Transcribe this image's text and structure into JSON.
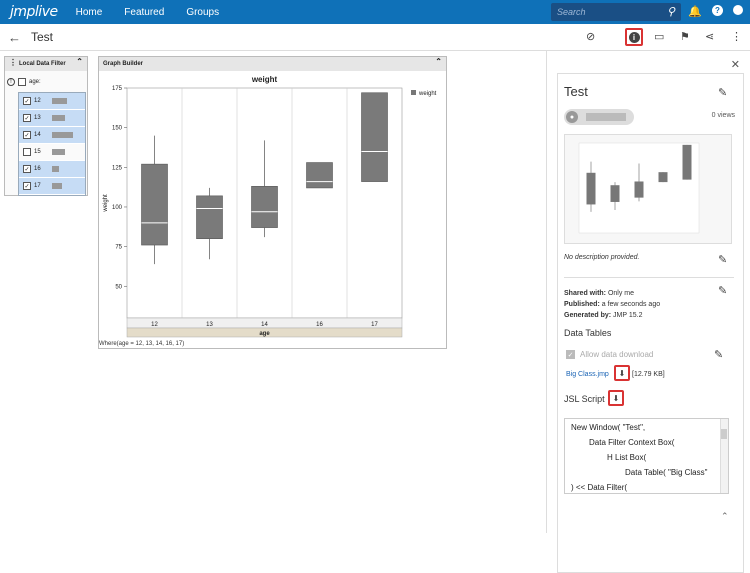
{
  "app": {
    "logo": "jmplive",
    "nav": [
      "Home",
      "Featured",
      "Groups"
    ],
    "search_placeholder": "Search"
  },
  "subbar": {
    "title": "Test"
  },
  "filter": {
    "title": "Local Data Filter",
    "column": "age:",
    "items": [
      {
        "label": "12",
        "selected": true,
        "share": 0.22
      },
      {
        "label": "13",
        "selected": true,
        "share": 0.18
      },
      {
        "label": "14",
        "selected": true,
        "share": 0.3
      },
      {
        "label": "15",
        "selected": false,
        "share": 0.18
      },
      {
        "label": "16",
        "selected": true,
        "share": 0.1
      },
      {
        "label": "17",
        "selected": true,
        "share": 0.14
      }
    ]
  },
  "graph": {
    "panel_title": "Graph Builder",
    "where": "Where(age = 12, 13, 14, 16, 17)"
  },
  "chart_data": {
    "type": "box",
    "title": "weight",
    "xlabel": "age",
    "ylabel": "weight",
    "ylim": [
      30,
      175
    ],
    "yticks": [
      50,
      75,
      100,
      125,
      150,
      175
    ],
    "legend": {
      "placement": "right",
      "entries": [
        "weight"
      ]
    },
    "categories": [
      "12",
      "13",
      "14",
      "16",
      "17"
    ],
    "boxes": [
      {
        "min": 64,
        "q1": 76,
        "median": 90,
        "q3": 127,
        "max": 145
      },
      {
        "min": 67,
        "q1": 80,
        "median": 99,
        "q3": 107,
        "max": 112
      },
      {
        "min": 81,
        "q1": 87,
        "median": 97,
        "q3": 113,
        "max": 142
      },
      {
        "min": 112,
        "q1": 112,
        "median": 116,
        "q3": 128,
        "max": 128
      },
      {
        "min": 116,
        "q1": 116,
        "median": 135,
        "q3": 172,
        "max": 172
      }
    ]
  },
  "panel": {
    "title": "Test",
    "views": "0 views",
    "no_description": "No description provided.",
    "shared_label": "Shared with:",
    "shared_value": "Only me",
    "published_label": "Published:",
    "published_value": "a few seconds ago",
    "generated_label": "Generated by:",
    "generated_value": "JMP 15.2",
    "data_tables": "Data Tables",
    "allow_download": "Allow data download",
    "file_name": "Big Class.jmp",
    "file_size": "[12.79 KB]",
    "jsl_script": "JSL Script",
    "script_lines": [
      "New Window( \"Test\",",
      "Data Filter Context Box(",
      "H List Box(",
      "Data Table( \"Big Class\"",
      ") << Data Filter("
    ]
  }
}
